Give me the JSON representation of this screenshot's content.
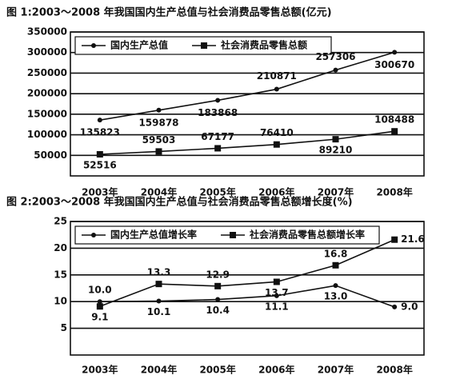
{
  "chart_data": [
    {
      "type": "line",
      "title": "图 1:2003～2008 年我国国内生产总值与社会消费品零售总额(亿元)",
      "categories": [
        "2003年",
        "2004年",
        "2005年",
        "2006年",
        "2007年",
        "2008年"
      ],
      "series": [
        {
          "name": "国内生产总值",
          "color": "#111111",
          "marker": "circle",
          "values": [
            135823,
            159878,
            183868,
            210871,
            257306,
            300670
          ]
        },
        {
          "name": "社会消费品零售总额",
          "color": "#111111",
          "marker": "square",
          "values": [
            52516,
            59503,
            67177,
            76410,
            89210,
            108488
          ]
        }
      ],
      "ylim": [
        0,
        350000
      ],
      "yticks": [
        50000,
        100000,
        150000,
        200000,
        250000,
        300000,
        350000
      ],
      "grid": true,
      "legend": "upper left"
    },
    {
      "type": "line",
      "title": "图 2:2003～2008 年我国国内生产总值与社会消费品零售总额增长度(%)",
      "categories": [
        "2003年",
        "2004年",
        "2005年",
        "2006年",
        "2007年",
        "2008年"
      ],
      "series": [
        {
          "name": "国内生产总值增长率",
          "color": "#111111",
          "marker": "circle",
          "values": [
            10,
            10.1,
            10.4,
            11.1,
            13,
            9
          ],
          "value_labels": [
            "10.0",
            "10.1",
            "10.4",
            "11.1",
            "13.0",
            "9.0"
          ]
        },
        {
          "name": "社会消费品零售总额增长率",
          "color": "#111111",
          "marker": "square",
          "values": [
            9.1,
            13.3,
            12.9,
            13.7,
            16.8,
            21.6
          ]
        }
      ],
      "ylim": [
        0,
        25
      ],
      "yticks": [
        5,
        10,
        15,
        20,
        25
      ],
      "grid": true,
      "legend": "upper left"
    }
  ]
}
